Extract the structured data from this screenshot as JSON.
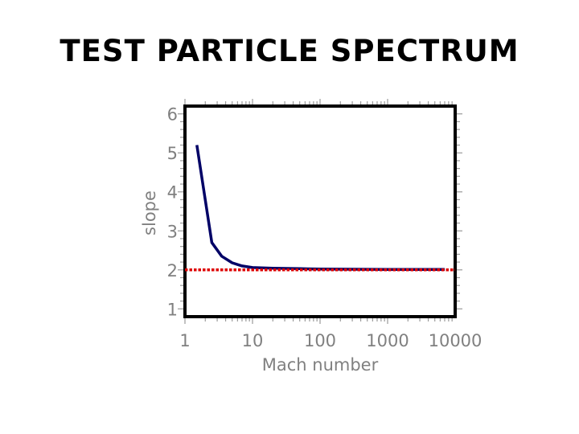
{
  "slide": {
    "title": "TEST PARTICLE SPECTRUM"
  },
  "chart_data": {
    "type": "line",
    "title": "",
    "xlabel": "Mach number",
    "ylabel": "slope",
    "x_scale": "log",
    "xlim": [
      1,
      10000
    ],
    "ylim": [
      0.8,
      6.2
    ],
    "x_ticks": [
      1,
      10,
      100,
      1000,
      10000
    ],
    "x_tick_labels": [
      "1",
      "10",
      "100",
      "1000",
      "10000"
    ],
    "y_ticks": [
      1,
      2,
      3,
      4,
      5,
      6
    ],
    "y_tick_labels": [
      "1",
      "2",
      "3",
      "4",
      "5",
      "6"
    ],
    "grid": false,
    "legend": "none",
    "series": [
      {
        "color": "#000066",
        "style": "solid",
        "x": [
          1.5,
          2.5,
          3.5,
          5,
          7,
          10,
          20,
          50,
          100,
          1000,
          7000
        ],
        "y": [
          5.2,
          2.7,
          2.35,
          2.18,
          2.1,
          2.06,
          2.04,
          2.03,
          2.02,
          2.01,
          2.01
        ]
      },
      {
        "color": "#dd0000",
        "style": "dotted",
        "x": [
          1,
          10000
        ],
        "y": [
          2,
          2
        ]
      }
    ]
  }
}
